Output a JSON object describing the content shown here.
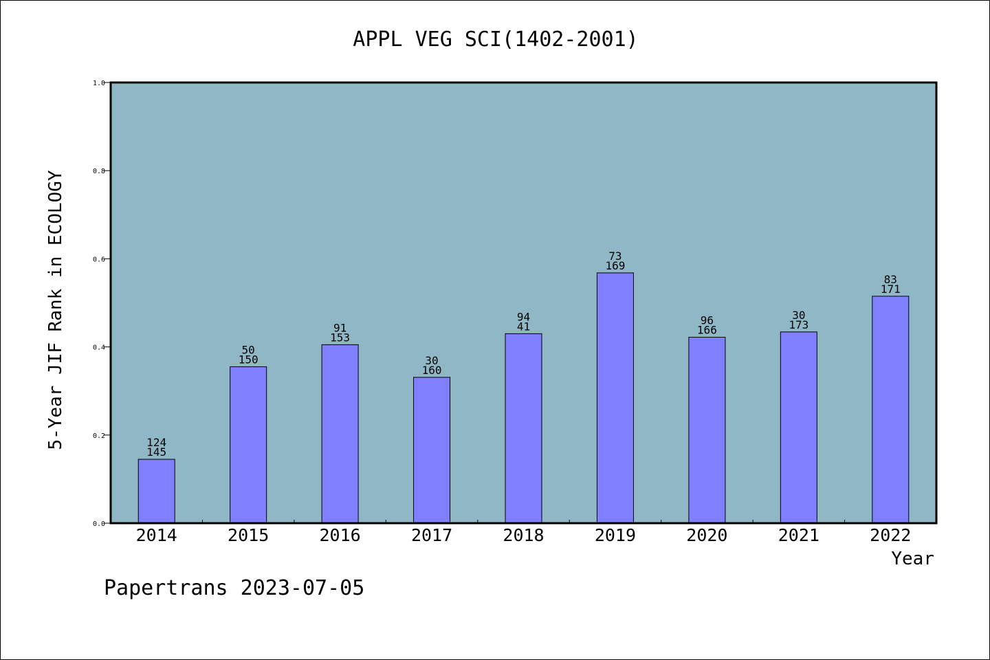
{
  "colors": {
    "plot_background": "#8fb7c5",
    "bar_fill": "#8080ff",
    "bar_stroke": "#000000",
    "axis": "#000000",
    "text": "#000000"
  },
  "chart_data": {
    "type": "bar",
    "title": "APPL VEG SCI(1402-2001)",
    "xlabel": "Year",
    "ylabel": "5-Year JIF Rank in ECOLOGY",
    "ylim": [
      0,
      1.0
    ],
    "yticks": [
      "0.0",
      "0.2",
      "0.4",
      "0.6",
      "0.8",
      "1.0"
    ],
    "grid": false,
    "categories": [
      "2014",
      "2015",
      "2016",
      "2017",
      "2018",
      "2019",
      "2020",
      "2021",
      "2022"
    ],
    "values": [
      0.145,
      0.355,
      0.405,
      0.331,
      0.43,
      0.568,
      0.422,
      0.434,
      0.515
    ],
    "labels_top": [
      "124",
      "50",
      "91",
      "30",
      "94",
      "73",
      "96",
      "30",
      "83"
    ],
    "labels_bottom": [
      "145",
      "150",
      "153",
      "160",
      "41",
      "169",
      "166",
      "173",
      "171"
    ]
  },
  "footer": {
    "text": "Papertrans 2023-07-05"
  }
}
